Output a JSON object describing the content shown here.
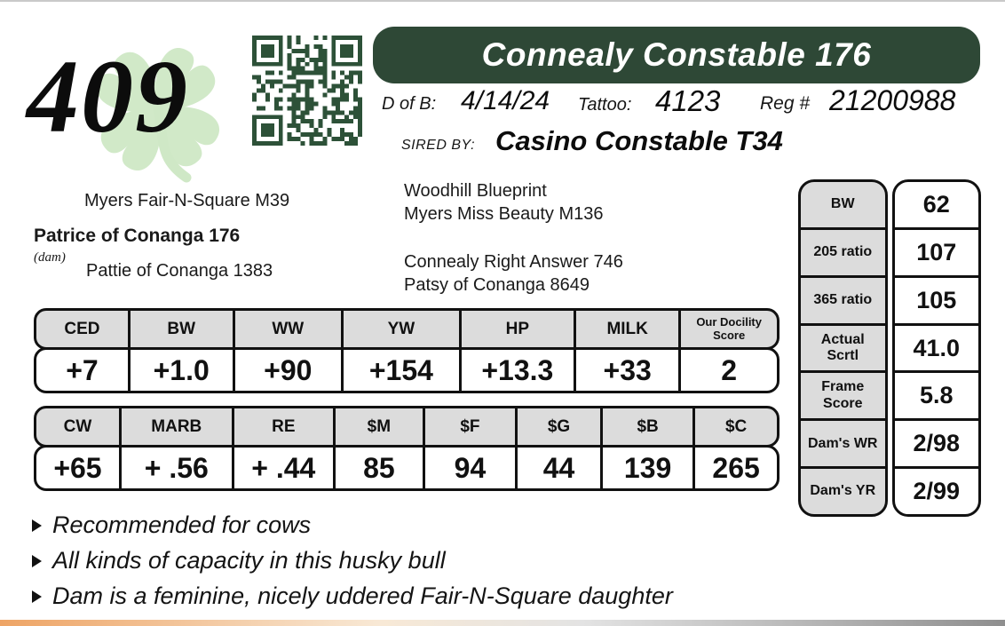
{
  "lot": {
    "number": "409"
  },
  "header": {
    "title": "Connealy Constable 176",
    "banner_color": "#2e4836"
  },
  "info": {
    "dob_label": "D of B:",
    "dob": "4/14/24",
    "tattoo_label": "Tattoo:",
    "tattoo": "4123",
    "reg_label": "Reg #",
    "reg": "21200988",
    "sired_by_label": "SIRED BY:",
    "sire": "Casino Constable T34"
  },
  "pedigree": {
    "dam_sire": "Myers Fair-N-Square M39",
    "dam": "Patrice of Conanga 176",
    "dam_tag": "(dam)",
    "dam_dam": "Pattie of Conanga 1383",
    "sire_side_top_1": "Woodhill Blueprint",
    "sire_side_top_2": "Myers Miss Beauty M136",
    "sire_side_bottom_1": "Connealy Right Answer 746",
    "sire_side_bottom_2": "Patsy of Conanga 8649"
  },
  "epd_primary": {
    "headers": [
      "CED",
      "BW",
      "WW",
      "YW",
      "HP",
      "MILK",
      "Our Docility Score"
    ],
    "values": [
      "+7",
      "+1.0",
      "+90",
      "+154",
      "+13.3",
      "+33",
      "2"
    ]
  },
  "epd_carcass": {
    "headers": [
      "CW",
      "MARB",
      "RE",
      "$M",
      "$F",
      "$G",
      "$B",
      "$C"
    ],
    "values": [
      "+65",
      "+ .56",
      "+ .44",
      "85",
      "94",
      "44",
      "139",
      "265"
    ]
  },
  "stats": {
    "rows": [
      {
        "label": "BW",
        "value": "62"
      },
      {
        "label": "205 ratio",
        "value": "107"
      },
      {
        "label": "365 ratio",
        "value": "105"
      },
      {
        "label": "Actual Scrtl",
        "value": "41.0"
      },
      {
        "label": "Frame Score",
        "value": "5.8"
      },
      {
        "label": "Dam's WR",
        "value": "2/98"
      },
      {
        "label": "Dam's YR",
        "value": "2/99"
      }
    ]
  },
  "notes": [
    "Recommended for cows",
    "All kinds of capacity in this husky bull",
    "Dam is a feminine, nicely uddered Fair-N-Square daughter"
  ],
  "icons": {
    "qr": "qr-code",
    "clover": "four-leaf-clover"
  },
  "colors": {
    "banner_green": "#2e4836",
    "qr_green": "#2d5138",
    "clover_green": "#cfe8c6",
    "table_header_grey": "#dcdcdc",
    "scan_edge_orange": "#eea465",
    "scan_edge_grey": "#8f8f8f"
  }
}
